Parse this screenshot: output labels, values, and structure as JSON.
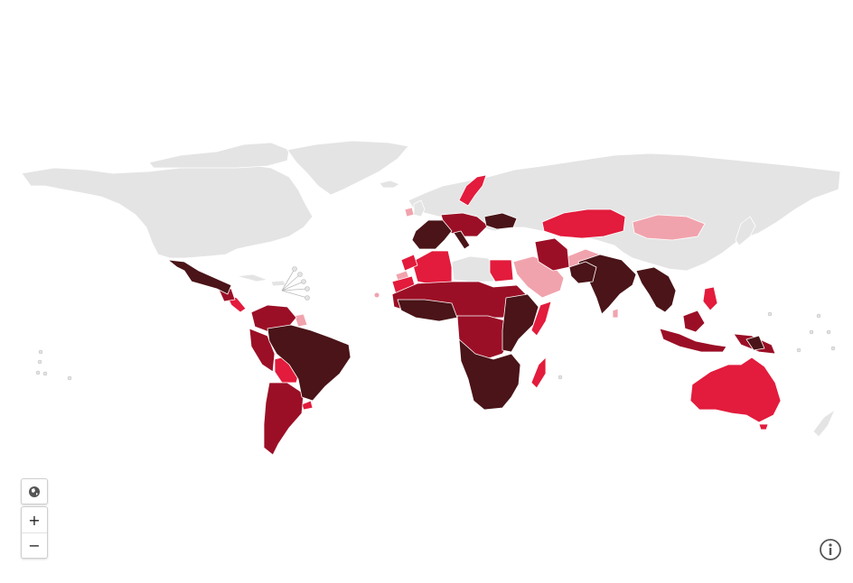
{
  "map": {
    "land_color": "#e4e4e4",
    "border_color": "#ffffff",
    "ocean_color": "#ffffff",
    "scale_colors": {
      "level_1": "#f1a3ad",
      "level_2": "#e31b3c",
      "level_3": "#9b0f26",
      "level_4": "#4a1418"
    }
  },
  "controls": {
    "home_icon": "globe-icon",
    "zoom_in_label": "+",
    "zoom_out_label": "−",
    "info_icon": "info-icon"
  }
}
